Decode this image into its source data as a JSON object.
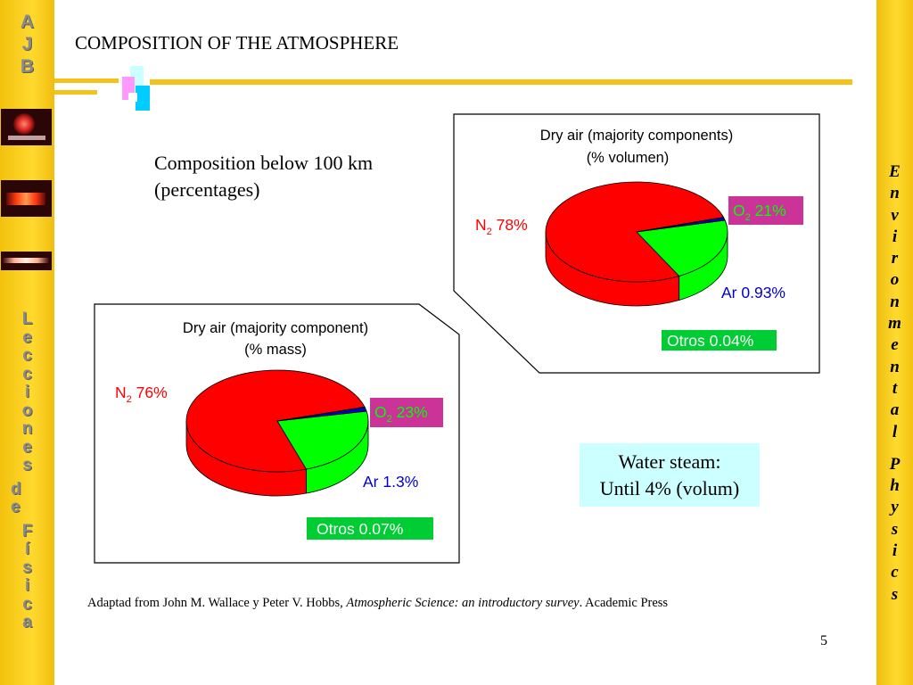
{
  "slide": {
    "title": "COMPOSITION OF THE ATMOSPHERE",
    "subtitle": "Composition below 100 km (percentages)",
    "water_note": [
      "Water steam:",
      "Until 4% (volum)"
    ],
    "source_prefix": "Adaptad from John M. Wallace y Peter V. Hobbs, ",
    "source_italic": "Atmospheric Science: an introductory survey",
    "source_suffix": ". Academic Press",
    "page_number": "5"
  },
  "sidebar_left": {
    "logo_letters": [
      "A",
      "J",
      "B"
    ],
    "vertical_text": [
      "L",
      "e",
      "c",
      "c",
      "i",
      "o",
      "n",
      "e",
      "s",
      "",
      "d",
      "e",
      "",
      "F",
      "í",
      "s",
      "i",
      "c",
      "a"
    ]
  },
  "sidebar_right": {
    "vertical_text": [
      "E",
      "n",
      "v",
      "i",
      "r",
      "o",
      "n",
      "m",
      "e",
      "n",
      "t",
      "a",
      "l",
      "",
      "P",
      "h",
      "y",
      "s",
      "i",
      "c",
      "s"
    ]
  },
  "colors": {
    "n2": "#ff0000",
    "o2": "#00ff00",
    "ar": "#0000cc",
    "otros": "#ffffff",
    "o2_label_bg": "#cc3399",
    "otros_label_bg": "#00cc33"
  },
  "chart_data": [
    {
      "type": "pie",
      "title": [
        "Dry air (majority components)",
        "(% volumen)"
      ],
      "slices": [
        {
          "name": "N",
          "sub": "2",
          "value": 78,
          "label": " 78%"
        },
        {
          "name": "O",
          "sub": "2",
          "value": 21,
          "label": " 21%"
        },
        {
          "name": "Ar",
          "sub": "",
          "value": 0.93,
          "label": " 0.93%"
        },
        {
          "name": "Otros",
          "sub": "",
          "value": 0.04,
          "label": " 0.04%"
        }
      ]
    },
    {
      "type": "pie",
      "title": [
        "Dry air (majority component)",
        "(% mass)"
      ],
      "slices": [
        {
          "name": "N",
          "sub": "2",
          "value": 76,
          "label": " 76%"
        },
        {
          "name": "O",
          "sub": "2",
          "value": 23,
          "label": " 23%"
        },
        {
          "name": "Ar",
          "sub": "",
          "value": 1.3,
          "label": " 1.3%"
        },
        {
          "name": "Otros",
          "sub": "",
          "value": 0.07,
          "label": " 0.07%"
        }
      ]
    }
  ]
}
